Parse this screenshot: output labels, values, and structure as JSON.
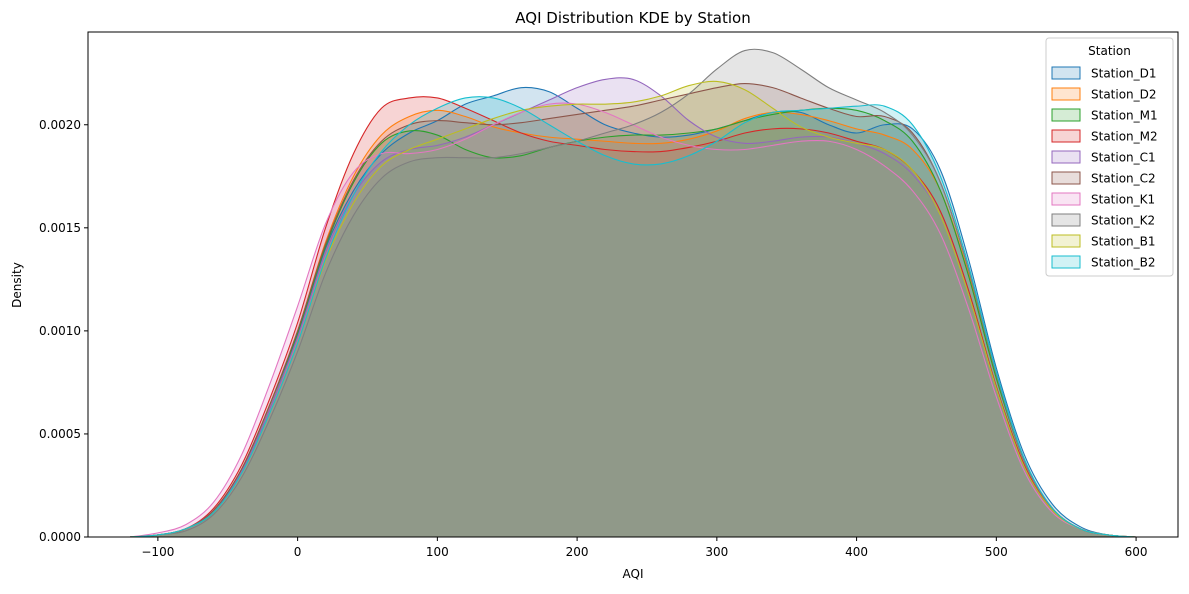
{
  "chart_data": {
    "type": "area",
    "title": "AQI Distribution KDE by Station",
    "xlabel": "AQI",
    "ylabel": "Density",
    "xlim": [
      -150,
      630
    ],
    "ylim": [
      0,
      0.00245
    ],
    "xticks": [
      -100,
      0,
      100,
      200,
      300,
      400,
      500,
      600
    ],
    "xtick_labels": [
      "−100",
      "0",
      "100",
      "200",
      "300",
      "400",
      "500",
      "600"
    ],
    "yticks": [
      0,
      0.0005,
      0.001,
      0.0015,
      0.002
    ],
    "ytick_labels": [
      "0.0000",
      "0.0005",
      "0.0010",
      "0.0015",
      "0.0020"
    ],
    "grid": false,
    "legend": {
      "title": "Station",
      "position": "upper-right"
    },
    "x": [
      -120,
      -100,
      -80,
      -60,
      -40,
      -20,
      0,
      20,
      40,
      60,
      80,
      100,
      120,
      140,
      160,
      180,
      200,
      220,
      240,
      260,
      280,
      300,
      320,
      340,
      360,
      380,
      400,
      420,
      440,
      460,
      480,
      500,
      520,
      540,
      560,
      580,
      600,
      620
    ],
    "series": [
      {
        "name": "Station_D1",
        "color": "#1f77b4",
        "values": [
          0.0,
          1e-05,
          4e-05,
          0.00012,
          0.00032,
          0.00062,
          0.00098,
          0.0014,
          0.00168,
          0.00186,
          0.00196,
          0.00202,
          0.0021,
          0.00214,
          0.00218,
          0.00216,
          0.00208,
          0.002,
          0.00196,
          0.00194,
          0.00195,
          0.00198,
          0.00202,
          0.00206,
          0.00206,
          0.002,
          0.00196,
          0.002,
          0.00198,
          0.00178,
          0.00135,
          0.00082,
          0.0004,
          0.00016,
          5e-05,
          1e-05,
          0.0,
          0.0
        ]
      },
      {
        "name": "Station_D2",
        "color": "#ff7f0e",
        "values": [
          0.0,
          1e-05,
          4e-05,
          0.00013,
          0.00033,
          0.00064,
          0.001,
          0.00143,
          0.00175,
          0.00195,
          0.00204,
          0.00207,
          0.00204,
          0.00199,
          0.00196,
          0.00194,
          0.00193,
          0.00192,
          0.00191,
          0.00191,
          0.00193,
          0.00197,
          0.00203,
          0.00206,
          0.00205,
          0.00202,
          0.00198,
          0.00195,
          0.00188,
          0.00168,
          0.00128,
          0.00078,
          0.00037,
          0.00014,
          4e-05,
          1e-05,
          0.0,
          0.0
        ]
      },
      {
        "name": "Station_M1",
        "color": "#2ca02c",
        "values": [
          0.0,
          1e-05,
          4e-05,
          0.00013,
          0.00033,
          0.00064,
          0.00099,
          0.00141,
          0.00172,
          0.00191,
          0.00197,
          0.00195,
          0.00188,
          0.00184,
          0.00185,
          0.00189,
          0.00192,
          0.00194,
          0.00195,
          0.00195,
          0.00196,
          0.00198,
          0.00202,
          0.00205,
          0.00207,
          0.00208,
          0.00207,
          0.00202,
          0.00192,
          0.00168,
          0.00127,
          0.00077,
          0.00037,
          0.00014,
          4e-05,
          1e-05,
          0.0,
          0.0
        ]
      },
      {
        "name": "Station_M2",
        "color": "#d62728",
        "values": [
          0.0,
          1e-05,
          4e-05,
          0.00014,
          0.00035,
          0.00067,
          0.00104,
          0.0015,
          0.00186,
          0.00208,
          0.00213,
          0.00213,
          0.00208,
          0.00202,
          0.00196,
          0.00192,
          0.0019,
          0.00188,
          0.00187,
          0.00187,
          0.00189,
          0.00192,
          0.00196,
          0.00198,
          0.00198,
          0.00196,
          0.00192,
          0.00188,
          0.00178,
          0.00158,
          0.0012,
          0.00073,
          0.00035,
          0.00013,
          4e-05,
          1e-05,
          0.0,
          0.0
        ]
      },
      {
        "name": "Station_C1",
        "color": "#9467bd",
        "values": [
          0.0,
          1e-05,
          4e-05,
          0.00013,
          0.00032,
          0.00062,
          0.00097,
          0.00138,
          0.00166,
          0.00182,
          0.00188,
          0.0019,
          0.00194,
          0.002,
          0.00206,
          0.00212,
          0.00218,
          0.00222,
          0.00222,
          0.00214,
          0.00202,
          0.00194,
          0.00191,
          0.00192,
          0.00194,
          0.00194,
          0.00191,
          0.00186,
          0.00176,
          0.00156,
          0.00118,
          0.00072,
          0.00034,
          0.00013,
          4e-05,
          1e-05,
          0.0,
          0.0
        ]
      },
      {
        "name": "Station_C2",
        "color": "#8c564b",
        "values": [
          0.0,
          1e-05,
          4e-05,
          0.00013,
          0.00033,
          0.00064,
          0.001,
          0.00142,
          0.00173,
          0.00192,
          0.002,
          0.00202,
          0.00201,
          0.002,
          0.00201,
          0.00203,
          0.00205,
          0.00207,
          0.00209,
          0.00212,
          0.00215,
          0.00218,
          0.0022,
          0.00218,
          0.00213,
          0.00208,
          0.00204,
          0.00204,
          0.00196,
          0.00172,
          0.0013,
          0.00079,
          0.00037,
          0.00014,
          4e-05,
          1e-05,
          0.0,
          0.0
        ]
      },
      {
        "name": "Station_K1",
        "color": "#e377c2",
        "values": [
          0.0,
          2e-05,
          6e-05,
          0.00017,
          0.0004,
          0.00074,
          0.00112,
          0.00152,
          0.00177,
          0.00186,
          0.00186,
          0.00188,
          0.00193,
          0.002,
          0.00206,
          0.0021,
          0.0021,
          0.00206,
          0.002,
          0.00194,
          0.0019,
          0.00188,
          0.00188,
          0.0019,
          0.00192,
          0.00192,
          0.00188,
          0.0018,
          0.00168,
          0.00147,
          0.00111,
          0.00068,
          0.00032,
          0.00012,
          4e-05,
          1e-05,
          0.0,
          0.0
        ]
      },
      {
        "name": "Station_K2",
        "color": "#7f7f7f",
        "values": [
          0.0,
          1e-05,
          3e-05,
          0.00011,
          0.00029,
          0.00057,
          0.0009,
          0.00128,
          0.00156,
          0.00174,
          0.00182,
          0.00184,
          0.00184,
          0.00184,
          0.00186,
          0.00189,
          0.00192,
          0.00196,
          0.002,
          0.00206,
          0.00215,
          0.00227,
          0.00236,
          0.00235,
          0.00227,
          0.00218,
          0.00212,
          0.00206,
          0.00195,
          0.00172,
          0.0013,
          0.00079,
          0.00037,
          0.00014,
          4e-05,
          1e-05,
          0.0,
          0.0
        ]
      },
      {
        "name": "Station_B1",
        "color": "#bcbd22",
        "values": [
          0.0,
          1e-05,
          4e-05,
          0.00012,
          0.00031,
          0.0006,
          0.00094,
          0.00134,
          0.00162,
          0.0018,
          0.00188,
          0.00193,
          0.00198,
          0.00203,
          0.00207,
          0.00209,
          0.0021,
          0.0021,
          0.00211,
          0.00214,
          0.00219,
          0.00221,
          0.00217,
          0.00208,
          0.00199,
          0.00194,
          0.00191,
          0.00188,
          0.00178,
          0.00156,
          0.00118,
          0.00072,
          0.00034,
          0.00013,
          4e-05,
          1e-05,
          0.0,
          0.0
        ]
      },
      {
        "name": "Station_B2",
        "color": "#17becf",
        "values": [
          0.0,
          1e-05,
          4e-05,
          0.00012,
          0.00031,
          0.0006,
          0.00094,
          0.00135,
          0.00166,
          0.00187,
          0.002,
          0.00208,
          0.00213,
          0.00213,
          0.00208,
          0.002,
          0.00192,
          0.00185,
          0.00181,
          0.00181,
          0.00185,
          0.00192,
          0.00201,
          0.00206,
          0.00207,
          0.00208,
          0.00209,
          0.00209,
          0.002,
          0.00175,
          0.00132,
          0.0008,
          0.00038,
          0.00014,
          4e-05,
          1e-05,
          0.0,
          0.0
        ]
      }
    ]
  }
}
